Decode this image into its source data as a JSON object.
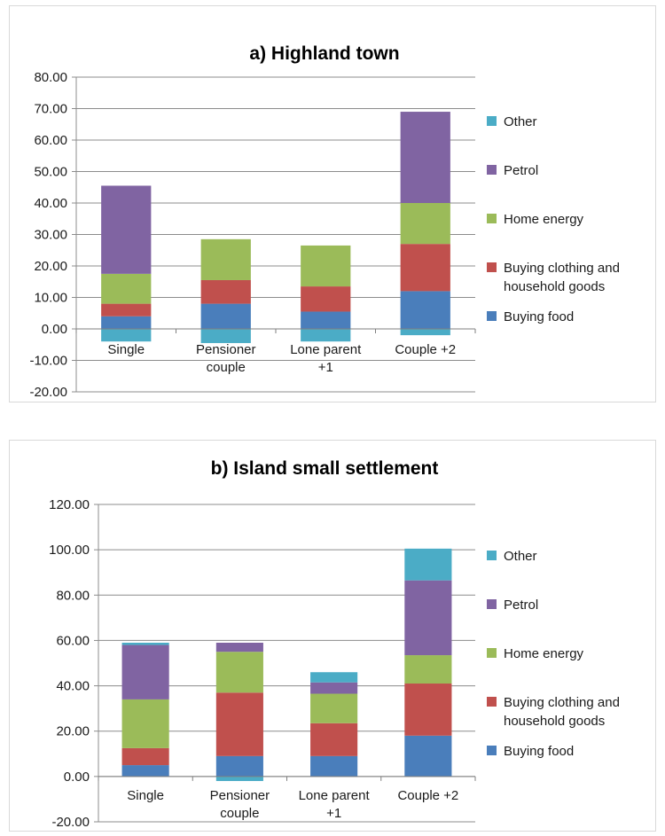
{
  "charts": [
    {
      "id": "a",
      "chart_data": {
        "type": "bar",
        "stacked": true,
        "title": "a) Highland town",
        "categories": [
          "Single",
          "Pensioner\ncouple",
          "Lone parent\n+1",
          "Couple +2"
        ],
        "ylim": [
          -20,
          80
        ],
        "yticks": [
          "80.00",
          "70.00",
          "60.00",
          "50.00",
          "40.00",
          "30.00",
          "20.00",
          "10.00",
          "0.00",
          "-10.00",
          "-20.00"
        ],
        "ytick_values": [
          80,
          70,
          60,
          50,
          40,
          30,
          20,
          10,
          0,
          -10,
          -20
        ],
        "grid": true,
        "legend_position": "right",
        "series": [
          {
            "name": "Buying food",
            "color": "#4a7ebb",
            "values": [
              4,
              8,
              5.5,
              12
            ]
          },
          {
            "name": "Buying clothing and household goods",
            "color": "#c0504d",
            "values": [
              4,
              7.5,
              8,
              15
            ]
          },
          {
            "name": "Home energy",
            "color": "#9bbb59",
            "values": [
              9.5,
              13,
              13,
              13
            ]
          },
          {
            "name": "Petrol",
            "color": "#8064a2",
            "values": [
              28,
              0,
              0,
              29
            ]
          },
          {
            "name": "Other",
            "color": "#4bacc6",
            "values": [
              -4,
              -4.5,
              -4,
              -2
            ]
          }
        ],
        "legend_order": [
          "Other",
          "Petrol",
          "Home energy",
          "Buying clothing and household goods",
          "Buying food"
        ]
      }
    },
    {
      "id": "b",
      "chart_data": {
        "type": "bar",
        "stacked": true,
        "title": "b) Island small settlement",
        "categories": [
          "Single",
          "Pensioner\ncouple",
          "Lone parent\n+1",
          "Couple +2"
        ],
        "ylim": [
          -20,
          120
        ],
        "yticks": [
          "120.00",
          "100.00",
          "80.00",
          "60.00",
          "40.00",
          "20.00",
          "0.00",
          "-20.00"
        ],
        "ytick_values": [
          120,
          100,
          80,
          60,
          40,
          20,
          0,
          -20
        ],
        "grid": true,
        "legend_position": "right",
        "series": [
          {
            "name": "Buying food",
            "color": "#4a7ebb",
            "values": [
              5,
              9,
              9,
              18
            ]
          },
          {
            "name": "Buying clothing and household goods",
            "color": "#c0504d",
            "values": [
              7.5,
              28,
              14.5,
              23
            ]
          },
          {
            "name": "Home energy",
            "color": "#9bbb59",
            "values": [
              21.5,
              18,
              13,
              12.5
            ]
          },
          {
            "name": "Petrol",
            "color": "#8064a2",
            "values": [
              24,
              4,
              5,
              33
            ]
          },
          {
            "name": "Other",
            "color": "#4bacc6",
            "values": [
              1,
              -2,
              4.5,
              14
            ]
          }
        ],
        "legend_order": [
          "Other",
          "Petrol",
          "Home energy",
          "Buying clothing and household goods",
          "Buying food"
        ]
      }
    }
  ]
}
